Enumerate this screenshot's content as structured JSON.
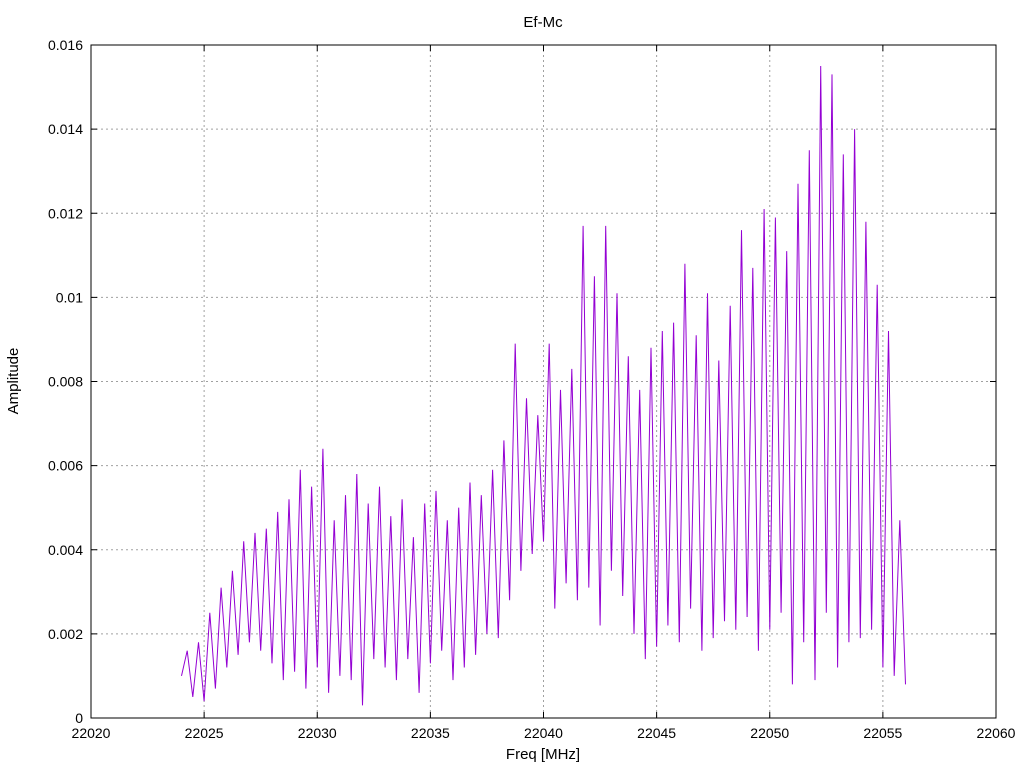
{
  "chart_data": {
    "type": "line",
    "title": "Ef-Mc",
    "xlabel": "Freq [MHz]",
    "ylabel": "Amplitude",
    "xlim": [
      22020,
      22060
    ],
    "ylim": [
      0,
      0.016
    ],
    "grid": true,
    "xticks": [
      22020,
      22025,
      22030,
      22035,
      22040,
      22045,
      22050,
      22055,
      22060
    ],
    "xtick_labels": [
      "22020",
      "22025",
      "22030",
      "22035",
      "22040",
      "22045",
      "22050",
      "22055",
      "22060"
    ],
    "yticks": [
      0,
      0.002,
      0.004,
      0.006,
      0.008,
      0.01,
      0.012,
      0.014,
      0.016
    ],
    "ytick_labels": [
      "0",
      "0.002",
      "0.004",
      "0.006",
      "0.008",
      "0.01",
      "0.012",
      "0.014",
      "0.016"
    ],
    "series_color": "#9400d3",
    "series": [
      {
        "x": [
          22024.0,
          22024.25,
          22024.5,
          22024.75,
          22025.0,
          22025.25,
          22025.5,
          22025.75,
          22026.0,
          22026.25,
          22026.5,
          22026.75,
          22027.0,
          22027.25,
          22027.5,
          22027.75,
          22028.0,
          22028.25,
          22028.5,
          22028.75,
          22029.0,
          22029.25,
          22029.5,
          22029.75,
          22030.0,
          22030.25,
          22030.5,
          22030.75,
          22031.0,
          22031.25,
          22031.5,
          22031.75,
          22032.0,
          22032.25,
          22032.5,
          22032.75,
          22033.0,
          22033.25,
          22033.5,
          22033.75,
          22034.0,
          22034.25,
          22034.5,
          22034.75,
          22035.0,
          22035.25,
          22035.5,
          22035.75,
          22036.0,
          22036.25,
          22036.5,
          22036.75,
          22037.0,
          22037.25,
          22037.5,
          22037.75,
          22038.0,
          22038.25,
          22038.5,
          22038.75,
          22039.0,
          22039.25,
          22039.5,
          22039.75,
          22040.0,
          22040.25,
          22040.5,
          22040.75,
          22041.0,
          22041.25,
          22041.5,
          22041.75,
          22042.0,
          22042.25,
          22042.5,
          22042.75,
          22043.0,
          22043.25,
          22043.5,
          22043.75,
          22044.0,
          22044.25,
          22044.5,
          22044.75,
          22045.0,
          22045.25,
          22045.5,
          22045.75,
          22046.0,
          22046.25,
          22046.5,
          22046.75,
          22047.0,
          22047.25,
          22047.5,
          22047.75,
          22048.0,
          22048.25,
          22048.5,
          22048.75,
          22049.0,
          22049.25,
          22049.5,
          22049.75,
          22050.0,
          22050.25,
          22050.5,
          22050.75,
          22051.0,
          22051.25,
          22051.5,
          22051.75,
          22052.0,
          22052.25,
          22052.5,
          22052.75,
          22053.0,
          22053.25,
          22053.5,
          22053.75,
          22054.0,
          22054.25,
          22054.5,
          22054.75,
          22055.0,
          22055.25,
          22055.5,
          22055.75,
          22056.0
        ],
        "values": [
          0.001,
          0.0016,
          0.0005,
          0.0018,
          0.0004,
          0.0025,
          0.0007,
          0.0031,
          0.0012,
          0.0035,
          0.0015,
          0.0042,
          0.0018,
          0.0044,
          0.0016,
          0.0045,
          0.0013,
          0.0049,
          0.0009,
          0.0052,
          0.0011,
          0.0059,
          0.0007,
          0.0055,
          0.0012,
          0.0064,
          0.0006,
          0.0047,
          0.001,
          0.0053,
          0.0009,
          0.0058,
          0.0003,
          0.0051,
          0.0014,
          0.0055,
          0.0012,
          0.0048,
          0.0009,
          0.0052,
          0.0014,
          0.0043,
          0.0006,
          0.0051,
          0.0013,
          0.0054,
          0.0016,
          0.0047,
          0.0009,
          0.005,
          0.0012,
          0.0056,
          0.0015,
          0.0053,
          0.002,
          0.0059,
          0.0019,
          0.0066,
          0.0028,
          0.0089,
          0.0035,
          0.0076,
          0.0039,
          0.0072,
          0.0042,
          0.0089,
          0.0026,
          0.0078,
          0.0032,
          0.0083,
          0.0028,
          0.0117,
          0.0031,
          0.0105,
          0.0022,
          0.0117,
          0.0035,
          0.0101,
          0.0029,
          0.0086,
          0.002,
          0.0078,
          0.0014,
          0.0088,
          0.0017,
          0.0092,
          0.0022,
          0.0094,
          0.0018,
          0.0108,
          0.0026,
          0.0091,
          0.0016,
          0.0101,
          0.0019,
          0.0085,
          0.0023,
          0.0098,
          0.0021,
          0.0116,
          0.0024,
          0.0107,
          0.0016,
          0.0121,
          0.0021,
          0.0119,
          0.0025,
          0.0111,
          0.0008,
          0.0127,
          0.0018,
          0.0135,
          0.0009,
          0.0155,
          0.0025,
          0.0153,
          0.0012,
          0.0134,
          0.0018,
          0.014,
          0.0019,
          0.0118,
          0.0021,
          0.0103,
          0.0012,
          0.0092,
          0.001,
          0.0047,
          0.0008
        ]
      }
    ]
  }
}
